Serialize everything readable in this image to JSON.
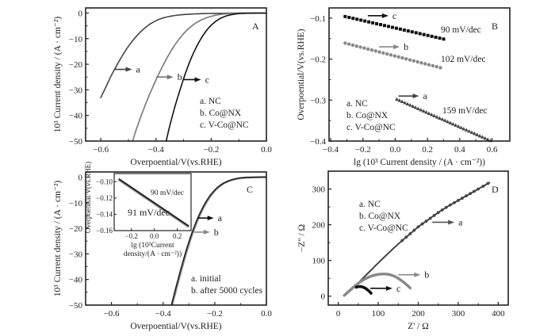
{
  "chart_data": [
    {
      "panel": "A",
      "type": "line",
      "xlabel": "Overpoential/V(vs.RHE)",
      "ylabel": "10³ Current density / (A · cm⁻²)",
      "xlim": [
        -0.655,
        0.0
      ],
      "ylim": [
        -50,
        2
      ],
      "xticks": [
        -0.6,
        -0.4,
        -0.2,
        0.0
      ],
      "xtick_labels": [
        "−0.6",
        "−0.4",
        "−0.2",
        "0.0"
      ],
      "yticks": [
        0,
        -10,
        -20,
        -30,
        -40,
        -50
      ],
      "ytick_labels": [
        "0",
        "−10",
        "−20",
        "−30",
        "−40",
        "−50"
      ],
      "legend": [
        "a. NC",
        "b. Co@NX",
        "c. V-Co@NC"
      ],
      "series": [
        {
          "name": "a",
          "color": "#444444",
          "x": [
            -0.6,
            -0.58,
            -0.56,
            -0.54,
            -0.52,
            -0.5,
            -0.48,
            -0.46,
            -0.44,
            -0.42,
            -0.4,
            -0.38,
            -0.35,
            -0.32,
            -0.28,
            -0.24,
            -0.2,
            -0.15,
            -0.1,
            -0.05,
            0.0
          ],
          "y": [
            -33,
            -28.5,
            -24,
            -20,
            -16.3,
            -13,
            -10.2,
            -7.8,
            -5.8,
            -4.2,
            -3.0,
            -2.1,
            -1.3,
            -0.8,
            -0.45,
            -0.25,
            -0.15,
            -0.08,
            -0.04,
            -0.02,
            0
          ]
        },
        {
          "name": "b",
          "color": "#777777",
          "x": [
            -0.485,
            -0.47,
            -0.45,
            -0.43,
            -0.41,
            -0.39,
            -0.37,
            -0.35,
            -0.33,
            -0.31,
            -0.29,
            -0.27,
            -0.25,
            -0.23,
            -0.21,
            -0.19,
            -0.17,
            -0.15,
            -0.12,
            -0.08,
            0.0
          ],
          "y": [
            -50,
            -45,
            -39,
            -33.5,
            -28.5,
            -23.8,
            -19.5,
            -15.6,
            -12.2,
            -9.3,
            -6.9,
            -5.0,
            -3.5,
            -2.4,
            -1.6,
            -1.0,
            -0.6,
            -0.35,
            -0.15,
            -0.05,
            0
          ]
        },
        {
          "name": "c",
          "color": "#111111",
          "x": [
            -0.363,
            -0.35,
            -0.33,
            -0.31,
            -0.29,
            -0.27,
            -0.25,
            -0.23,
            -0.21,
            -0.19,
            -0.17,
            -0.15,
            -0.13,
            -0.11,
            -0.09,
            -0.05,
            0.0
          ],
          "y": [
            -50,
            -44,
            -36,
            -29,
            -22.5,
            -17,
            -12.5,
            -8.8,
            -5.9,
            -3.8,
            -2.3,
            -1.3,
            -0.7,
            -0.35,
            -0.15,
            -0.04,
            0
          ]
        }
      ],
      "annotations": [
        {
          "text": "a",
          "arrow_at": [
            -0.55,
            -22
          ]
        },
        {
          "text": "b",
          "arrow_at": [
            -0.4,
            -25
          ]
        },
        {
          "text": "c",
          "arrow_at": [
            -0.3,
            -26
          ]
        },
        {
          "text": "A",
          "position": "top-right"
        }
      ]
    },
    {
      "panel": "B",
      "type": "scatter",
      "xlabel": "lg (10³ Current density / (A · cm⁻²))",
      "ylabel": "Overpoential/V(vs.RHE)",
      "xlim": [
        -0.41,
        0.71
      ],
      "ylim": [
        -0.4,
        -0.075
      ],
      "xticks": [
        -0.4,
        -0.2,
        0.0,
        0.2,
        0.4,
        0.6
      ],
      "xtick_labels": [
        "−0.4",
        "−0.2",
        "0.0",
        "0.2",
        "0.4",
        "0.6"
      ],
      "yticks": [
        -0.1,
        -0.2,
        -0.3,
        -0.4
      ],
      "ytick_labels": [
        "−0.1",
        "−0.2",
        "−0.3",
        "−0.4"
      ],
      "legend": [
        "a. NC",
        "b. Co@NX",
        "c. V-Co@NC"
      ],
      "series": [
        {
          "name": "c",
          "color": "#111111",
          "marker": "square",
          "x_range": [
            -0.31,
            0.3
          ],
          "y_range": [
            -0.096,
            -0.151
          ],
          "n": 26,
          "slope_label": "90 mV/dec"
        },
        {
          "name": "b",
          "color": "#888888",
          "marker": "circle",
          "x_range": [
            -0.31,
            0.28
          ],
          "y_range": [
            -0.161,
            -0.221
          ],
          "n": 26,
          "slope_label": "102 mV/dec"
        },
        {
          "name": "a",
          "color": "#444444",
          "marker": "triangle",
          "x_range": [
            0.01,
            0.59
          ],
          "y_range": [
            -0.298,
            -0.399
          ],
          "n": 36,
          "slope_label": "159 mV/dec"
        }
      ],
      "annotations": [
        {
          "text": "c",
          "arrow_at": [
            -0.17,
            -0.094
          ]
        },
        {
          "text": "b",
          "arrow_at": [
            -0.1,
            -0.17
          ]
        },
        {
          "text": "a",
          "arrow_at": [
            0.02,
            -0.29
          ]
        },
        {
          "text": "B",
          "position": "top-right"
        }
      ]
    },
    {
      "panel": "C",
      "type": "line",
      "xlabel": "Overpoential/V(vs.RHE)",
      "ylabel": "10³ Current density / (A · cm⁻²)",
      "xlim": [
        -0.7,
        0.0
      ],
      "ylim": [
        -50,
        2
      ],
      "xticks": [
        -0.6,
        -0.4,
        -0.2,
        0.0
      ],
      "xtick_labels": [
        "−0.6",
        "−0.4",
        "−0.2",
        "0.0"
      ],
      "yticks": [
        0,
        -10,
        -20,
        -30,
        -40,
        -50
      ],
      "ytick_labels": [
        "0",
        "−10",
        "−20",
        "−30",
        "−40",
        "−50"
      ],
      "legend": [
        "a. initial",
        "b. after 5000 cycles"
      ],
      "series": [
        {
          "name": "a",
          "color": "#222222",
          "x": [
            -0.368,
            -0.35,
            -0.33,
            -0.31,
            -0.29,
            -0.27,
            -0.25,
            -0.23,
            -0.21,
            -0.19,
            -0.17,
            -0.15,
            -0.13,
            -0.11,
            -0.09,
            -0.06,
            0.0
          ],
          "y": [
            -50,
            -43,
            -35.5,
            -28.5,
            -22.3,
            -17,
            -12.6,
            -9.0,
            -6.2,
            -4.1,
            -2.6,
            -1.6,
            -0.95,
            -0.5,
            -0.25,
            -0.1,
            0
          ]
        },
        {
          "name": "b",
          "color": "#888888",
          "x": [
            -0.365,
            -0.347,
            -0.327,
            -0.307,
            -0.287,
            -0.267,
            -0.247,
            -0.227,
            -0.207,
            -0.187,
            -0.167,
            -0.147,
            -0.127,
            -0.107,
            -0.087,
            -0.057,
            0.0
          ],
          "y": [
            -50,
            -43,
            -35.5,
            -28.5,
            -22.3,
            -17,
            -12.6,
            -9.0,
            -6.2,
            -4.1,
            -2.6,
            -1.6,
            -0.95,
            -0.5,
            -0.25,
            -0.1,
            0
          ]
        }
      ],
      "annotations": [
        {
          "text": "a",
          "arrow_at": [
            -0.265,
            -16
          ]
        },
        {
          "text": "b",
          "arrow_at": [
            -0.28,
            -21.5
          ]
        },
        {
          "text": "C",
          "position": "top-right"
        }
      ],
      "inset": {
        "type": "line",
        "xlabel_line1": "lg (10³Current",
        "xlabel_line2": "density/(A · cm⁻²))",
        "ylabel": "Overpoential/V(vs.RHE)",
        "xlim": [
          -0.35,
          0.32
        ],
        "ylim": [
          -0.16,
          -0.09
        ],
        "xticks": [
          -0.2,
          0.0,
          0.2
        ],
        "xtick_labels": [
          "−0.2",
          "0.0",
          "0.2"
        ],
        "yticks": [
          -0.1,
          -0.12,
          -0.14,
          -0.16
        ],
        "ytick_labels": [
          "−0.10",
          "−0.12",
          "−0.14",
          "−0.16"
        ],
        "series": [
          {
            "name": "a",
            "color": "#222222",
            "x": [
              -0.31,
              0.3
            ],
            "y": [
              -0.0965,
              -0.1545
            ],
            "label": "90 mV/dec"
          },
          {
            "name": "b",
            "color": "#999999",
            "x": [
              -0.31,
              0.3
            ],
            "y": [
              -0.0975,
              -0.1555
            ],
            "label": "91 mV/dec"
          }
        ]
      }
    },
    {
      "panel": "D",
      "type": "scatter",
      "xlabel": "Z' / Ω",
      "ylabel": "−Z'' / Ω",
      "xlim": [
        -25,
        425
      ],
      "ylim": [
        -25,
        350
      ],
      "xticks": [
        0,
        100,
        200,
        300,
        400
      ],
      "xtick_labels": [
        "0",
        "100",
        "200",
        "300",
        "400"
      ],
      "yticks": [
        0,
        100,
        200,
        300
      ],
      "ytick_labels": [
        "0",
        "100",
        "200",
        "300"
      ],
      "legend": [
        "a. NC",
        "b. Co@NX",
        "c. V-Co@NC"
      ],
      "series": [
        {
          "name": "a",
          "color": "#444444",
          "x": [
            15,
            30,
            50,
            75,
            100,
            125,
            150,
            175,
            200,
            225,
            250,
            275,
            300,
            325,
            350,
            378
          ],
          "y": [
            2,
            15,
            37,
            65,
            93,
            120,
            146,
            170,
            194,
            214,
            234,
            252,
            268,
            284,
            300,
            318
          ]
        },
        {
          "name": "b",
          "color": "#888888",
          "x": [
            15,
            25,
            40,
            55,
            70,
            85,
            100,
            115,
            130,
            145,
            160,
            172,
            180
          ],
          "y": [
            2,
            12,
            27,
            40,
            50,
            57,
            61,
            62,
            60,
            53,
            42,
            31,
            23
          ]
        },
        {
          "name": "c",
          "color": "#111111",
          "x": [
            45,
            52,
            60,
            68,
            75,
            80,
            82
          ],
          "y": [
            25,
            27,
            26,
            22,
            16,
            11,
            8
          ]
        }
      ],
      "annotations": [
        {
          "text": "a",
          "arrow_at": [
            235,
            207
          ]
        },
        {
          "text": "b",
          "arrow_at": [
            150,
            60
          ]
        },
        {
          "text": "c",
          "arrow_at": [
            80,
            22
          ]
        },
        {
          "text": "D",
          "position": "top-right"
        }
      ]
    }
  ]
}
